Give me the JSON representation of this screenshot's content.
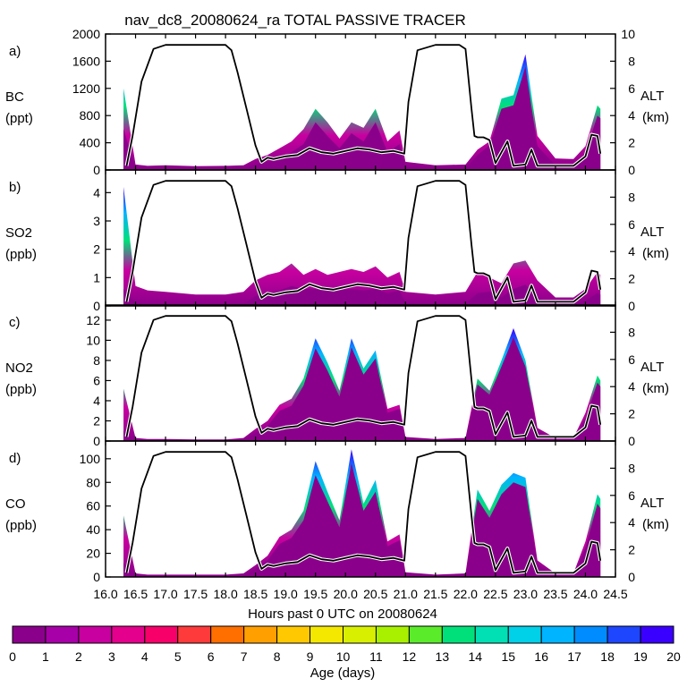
{
  "chart_data": {
    "type": "area",
    "title": "nav_dc8_20080624_ra TOTAL PASSIVE TRACER",
    "xlabel": "Hours past 0 UTC on 20080624",
    "xlim": [
      16.0,
      24.5
    ],
    "xticks": [
      "16.0",
      "16.5",
      "17.0",
      "17.5",
      "18.0",
      "18.5",
      "19.0",
      "19.5",
      "20.0",
      "20.5",
      "21.0",
      "21.5",
      "22.0",
      "22.5",
      "23.0",
      "23.5",
      "24.0",
      "24.5"
    ],
    "right_axis": {
      "label": "ALT",
      "units": "(km)",
      "ylim": [
        0,
        10
      ]
    },
    "altitude_km": {
      "x": [
        16.35,
        16.45,
        16.6,
        16.8,
        17.0,
        17.5,
        18.0,
        18.1,
        18.2,
        18.35,
        18.5,
        18.6,
        18.7,
        18.8,
        19.0,
        19.2,
        19.4,
        19.6,
        19.8,
        20.0,
        20.2,
        20.4,
        20.6,
        20.8,
        20.98,
        21.05,
        21.2,
        21.5,
        21.9,
        22.0,
        22.1,
        22.15,
        22.2,
        22.3,
        22.4,
        22.5,
        22.6,
        22.7,
        22.8,
        23.0,
        23.1,
        23.2,
        23.5,
        23.8,
        24.0,
        24.1,
        24.2,
        24.25
      ],
      "y": [
        0.3,
        2.5,
        6.5,
        8.9,
        9.2,
        9.2,
        9.2,
        8.8,
        7.2,
        4.5,
        1.8,
        0.6,
        0.9,
        0.8,
        1.0,
        1.1,
        1.6,
        1.3,
        1.2,
        1.4,
        1.6,
        1.5,
        1.3,
        1.4,
        1.2,
        5.0,
        8.8,
        9.2,
        9.2,
        8.9,
        4.5,
        2.5,
        2.4,
        2.4,
        2.2,
        0.5,
        1.3,
        2.1,
        0.3,
        0.4,
        1.5,
        0.3,
        0.3,
        0.3,
        1.0,
        2.6,
        2.5,
        1.2
      ]
    },
    "panels": [
      {
        "letter": "a)",
        "species": "BC",
        "units": "(ppt)",
        "ylim": [
          0,
          2000
        ],
        "yticks": [
          "0",
          "400",
          "800",
          "1200",
          "1600",
          "2000"
        ],
        "x": [
          16.3,
          16.5,
          16.7,
          17.0,
          17.5,
          18.0,
          18.3,
          18.5,
          18.7,
          18.9,
          19.1,
          19.3,
          19.5,
          19.7,
          19.9,
          20.1,
          20.3,
          20.5,
          20.7,
          20.9,
          21.0,
          21.5,
          22.0,
          22.2,
          22.4,
          22.6,
          22.8,
          23.0,
          23.2,
          23.5,
          23.8,
          24.0,
          24.2,
          24.25
        ],
        "total": [
          1200,
          80,
          60,
          70,
          55,
          60,
          70,
          160,
          220,
          320,
          420,
          600,
          900,
          700,
          460,
          700,
          620,
          900,
          420,
          580,
          120,
          70,
          80,
          300,
          420,
          1050,
          1100,
          1700,
          500,
          170,
          160,
          350,
          950,
          900
        ],
        "purple": [
          600,
          20,
          10,
          15,
          10,
          12,
          20,
          80,
          120,
          160,
          260,
          380,
          700,
          500,
          320,
          540,
          420,
          700,
          260,
          380,
          40,
          15,
          20,
          220,
          360,
          900,
          950,
          1520,
          350,
          70,
          70,
          250,
          800,
          760
        ]
      },
      {
        "letter": "b)",
        "species": "SO2",
        "units": "(ppb)",
        "ylim": [
          0,
          4.8
        ],
        "yticks": [
          "0",
          "1",
          "2",
          "3",
          "4"
        ],
        "x": [
          16.3,
          16.5,
          16.7,
          17.0,
          17.5,
          18.0,
          18.3,
          18.5,
          18.7,
          18.9,
          19.1,
          19.3,
          19.5,
          19.7,
          19.9,
          20.1,
          20.3,
          20.5,
          20.7,
          20.9,
          21.0,
          21.5,
          22.0,
          22.2,
          22.4,
          22.6,
          22.8,
          23.0,
          23.2,
          23.5,
          23.8,
          24.0,
          24.2,
          24.25
        ],
        "total": [
          4.2,
          0.7,
          0.55,
          0.5,
          0.4,
          0.4,
          0.5,
          0.9,
          1.1,
          1.2,
          1.5,
          1.1,
          1.3,
          1.1,
          1.2,
          1.3,
          1.2,
          1.4,
          1.0,
          1.2,
          0.5,
          0.4,
          0.5,
          1.2,
          1.0,
          0.8,
          1.5,
          1.6,
          0.9,
          0.3,
          0.3,
          0.6,
          1.2,
          1.1
        ],
        "purple": [
          0.6,
          0.1,
          0.05,
          0.05,
          0.04,
          0.04,
          0.08,
          0.35,
          0.45,
          0.55,
          0.7,
          0.6,
          0.6,
          0.55,
          0.55,
          0.6,
          0.55,
          0.6,
          0.45,
          0.55,
          0.1,
          0.05,
          0.08,
          0.45,
          0.5,
          0.3,
          0.6,
          0.75,
          0.3,
          0.05,
          0.05,
          0.2,
          0.45,
          0.4
        ]
      },
      {
        "letter": "c)",
        "species": "NO2",
        "units": "(ppb)",
        "ylim": [
          0,
          13.5
        ],
        "yticks": [
          "0",
          "2",
          "4",
          "6",
          "8",
          "10",
          "12"
        ],
        "x": [
          16.3,
          16.5,
          16.7,
          17.0,
          17.5,
          18.0,
          18.3,
          18.5,
          18.7,
          18.9,
          19.1,
          19.3,
          19.5,
          19.7,
          19.9,
          20.1,
          20.3,
          20.5,
          20.7,
          20.9,
          21.0,
          21.5,
          22.0,
          22.2,
          22.4,
          22.6,
          22.8,
          23.0,
          23.2,
          23.5,
          23.8,
          24.0,
          24.2,
          24.25
        ],
        "total": [
          5.2,
          0.3,
          0.2,
          0.2,
          0.15,
          0.15,
          0.3,
          1.2,
          2.0,
          3.6,
          4.2,
          6.2,
          10.2,
          7.8,
          5.0,
          10.2,
          7.2,
          9.0,
          3.2,
          3.6,
          0.4,
          0.2,
          0.3,
          6.2,
          5.0,
          8.0,
          11.2,
          8.0,
          1.3,
          0.3,
          0.3,
          2.8,
          6.5,
          6.0
        ],
        "purple": [
          1.0,
          0.05,
          0.04,
          0.04,
          0.03,
          0.03,
          0.1,
          0.8,
          1.5,
          3.0,
          3.5,
          5.5,
          9.2,
          7.0,
          4.4,
          9.3,
          6.6,
          8.2,
          2.8,
          3.2,
          0.15,
          0.04,
          0.1,
          5.6,
          4.6,
          7.4,
          10.3,
          7.4,
          1.0,
          0.05,
          0.05,
          2.3,
          5.8,
          5.4
        ]
      },
      {
        "letter": "d)",
        "species": "CO",
        "units": "(ppb)",
        "ylim": [
          0,
          115
        ],
        "yticks": [
          "0",
          "20",
          "40",
          "60",
          "80",
          "100"
        ],
        "x": [
          16.3,
          16.5,
          16.7,
          17.0,
          17.5,
          18.0,
          18.3,
          18.5,
          18.7,
          18.9,
          19.1,
          19.3,
          19.5,
          19.7,
          19.9,
          20.1,
          20.3,
          20.5,
          20.7,
          20.9,
          21.0,
          21.5,
          22.0,
          22.2,
          22.4,
          22.6,
          22.8,
          23.0,
          23.2,
          23.5,
          23.8,
          24.0,
          24.2,
          24.25
        ],
        "total": [
          52,
          3,
          2,
          2,
          2,
          2,
          3,
          10,
          18,
          34,
          40,
          56,
          98,
          72,
          48,
          108,
          62,
          82,
          30,
          36,
          4,
          2,
          3,
          74,
          56,
          78,
          88,
          84,
          14,
          3,
          3,
          30,
          70,
          66
        ],
        "purple": [
          12,
          0.5,
          0.4,
          0.4,
          0.3,
          0.3,
          1.0,
          7,
          14,
          28,
          33,
          48,
          86,
          64,
          42,
          96,
          56,
          72,
          26,
          31,
          1.5,
          0.4,
          1.0,
          66,
          50,
          70,
          80,
          76,
          11,
          0.5,
          0.5,
          25,
          62,
          58
        ]
      }
    ],
    "colorbar": {
      "label": "Age (days)",
      "ticks": [
        "0",
        "1",
        "2",
        "3",
        "4",
        "5",
        "6",
        "7",
        "8",
        "9",
        "10",
        "11",
        "12",
        "13",
        "14",
        "15",
        "16",
        "17",
        "18",
        "19",
        "20"
      ],
      "colors": [
        "#8b008b",
        "#a800a8",
        "#c800a0",
        "#e4008c",
        "#f7006a",
        "#ff3a3a",
        "#ff6f00",
        "#ff9f00",
        "#ffc800",
        "#f5e800",
        "#d8f000",
        "#a8f000",
        "#5aeb2a",
        "#00e07a",
        "#00e0b4",
        "#00d0e8",
        "#00b4ff",
        "#008cff",
        "#1e46ff",
        "#3a00ff"
      ]
    }
  }
}
